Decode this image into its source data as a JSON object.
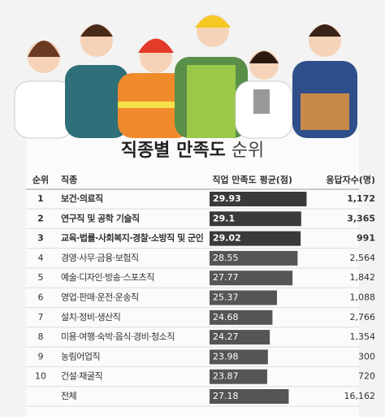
{
  "header": {
    "title_bold": "직종별 만족도",
    "title_light": "순위"
  },
  "table": {
    "columns": [
      "순위",
      "직종",
      "직업 만족도 평균(점)",
      "응답자수(명)"
    ],
    "xlim": [
      15,
      30
    ],
    "rows": [
      {
        "rank": "1",
        "job": "보건·의료직",
        "score": 29.93,
        "count": "1,172",
        "highlight": true
      },
      {
        "rank": "2",
        "job": "연구직 및 공학 기술직",
        "score": 29.1,
        "count": "3,365",
        "highlight": true
      },
      {
        "rank": "3",
        "job": "교육·법률·사회복지·경찰·소방직 및 군인",
        "score": 29.02,
        "count": "991",
        "highlight": true
      },
      {
        "rank": "4",
        "job": "경영·사무·금융·보험직",
        "score": 28.55,
        "count": "2,564"
      },
      {
        "rank": "5",
        "job": "예술·디자인·방송·스포츠직",
        "score": 27.77,
        "count": "1,842"
      },
      {
        "rank": "6",
        "job": "영업·판매·운전·운송직",
        "score": 25.37,
        "count": "1,088"
      },
      {
        "rank": "7",
        "job": "설치·정비·생산직",
        "score": 24.68,
        "count": "2,766"
      },
      {
        "rank": "8",
        "job": "미용·여행·숙박·음식·경비·청소직",
        "score": 24.27,
        "count": "1,354"
      },
      {
        "rank": "9",
        "job": "농림어업직",
        "score": 23.98,
        "count": "300"
      },
      {
        "rank": "10",
        "job": "건설·채굴직",
        "score": 23.87,
        "count": "720"
      },
      {
        "job": "전체",
        "score": 27.18,
        "count": "16,162"
      }
    ]
  }
}
